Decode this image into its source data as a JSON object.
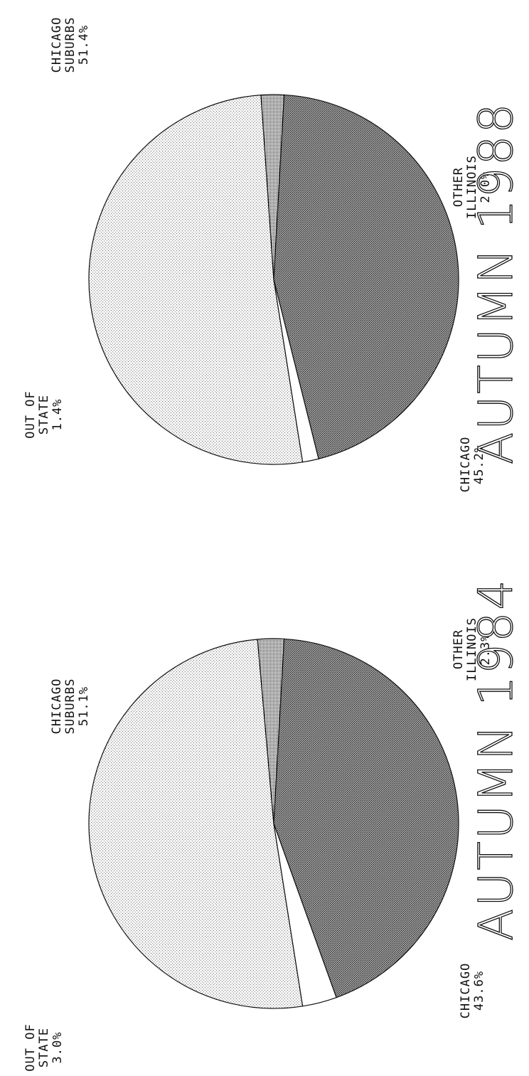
{
  "chart_data": [
    {
      "type": "pie",
      "title": "AUTUMN 1984",
      "slices": [
        {
          "label_lines": [
            "CHICAGO",
            "SUBURBS"
          ],
          "value_label": "51.1%",
          "value": 51.1,
          "pattern": "light-dots"
        },
        {
          "label_lines": [
            "OTHER",
            "ILLINOIS"
          ],
          "value_label": "2.3%",
          "value": 2.3,
          "pattern": "fine-grid"
        },
        {
          "label_lines": [
            "CHICAGO"
          ],
          "value_label": "43.6%",
          "value": 43.6,
          "pattern": "dark-dots"
        },
        {
          "label_lines": [
            "OUT OF",
            "STATE"
          ],
          "value_label": "3.0%",
          "value": 3.0,
          "pattern": "white"
        }
      ]
    },
    {
      "type": "pie",
      "title": "AUTUMN 1988",
      "slices": [
        {
          "label_lines": [
            "CHICAGO",
            "SUBURBS"
          ],
          "value_label": "51.4%",
          "value": 51.4,
          "pattern": "light-dots"
        },
        {
          "label_lines": [
            "OTHER",
            "ILLINOIS"
          ],
          "value_label": "2.0%",
          "value": 2.0,
          "pattern": "fine-grid"
        },
        {
          "label_lines": [
            "CHICAGO"
          ],
          "value_label": "45.2%",
          "value": 45.2,
          "pattern": "dark-dots"
        },
        {
          "label_lines": [
            "OUT OF",
            "STATE"
          ],
          "value_label": "1.4%",
          "value": 1.4,
          "pattern": "white"
        }
      ]
    }
  ],
  "colors": {
    "ink": "#111111",
    "background": "#ffffff"
  }
}
